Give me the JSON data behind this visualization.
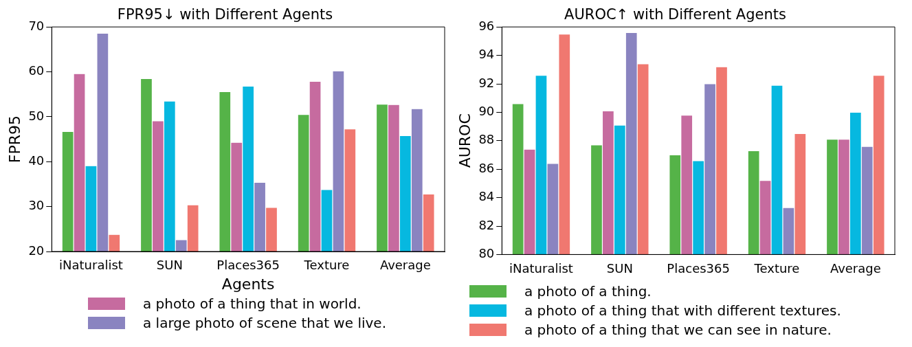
{
  "chart_data": [
    {
      "type": "bar",
      "title": "FPR95↓ with Different Agents",
      "xlabel": "Agents",
      "ylabel": "FPR95",
      "categories": [
        "iNaturalist",
        "SUN",
        "Places365",
        "Texture",
        "Average"
      ],
      "ylim": [
        20,
        70
      ],
      "yticks": [
        20,
        30,
        40,
        50,
        60,
        70
      ],
      "grid": false,
      "legend": "bottom",
      "series": [
        {
          "color": "#55b348",
          "values": [
            46.7,
            58.5,
            55.6,
            50.5,
            52.8
          ]
        },
        {
          "name": "a photo of a thing that in world.",
          "color": "#c66b9f",
          "values": [
            59.6,
            49.1,
            44.3,
            57.9,
            52.7
          ]
        },
        {
          "color": "#06b8e0",
          "values": [
            39.1,
            53.5,
            56.8,
            33.8,
            45.8
          ]
        },
        {
          "name": "a large photo of scene that we live.",
          "color": "#8a84c0",
          "values": [
            68.6,
            22.6,
            35.4,
            60.2,
            51.8
          ]
        },
        {
          "color": "#f07870",
          "values": [
            23.8,
            30.4,
            29.8,
            47.3,
            32.8
          ]
        }
      ]
    },
    {
      "type": "bar",
      "title": "AUROC↑ with Different Agents",
      "ylabel": "AUROC",
      "categories": [
        "iNaturalist",
        "SUN",
        "Places365",
        "Texture",
        "Average"
      ],
      "ylim": [
        80,
        96
      ],
      "yticks": [
        80,
        82,
        84,
        86,
        88,
        90,
        92,
        94,
        96
      ],
      "grid": false,
      "legend": "bottom",
      "series": [
        {
          "name": "a photo of a thing.",
          "color": "#55b348",
          "values": [
            90.6,
            87.7,
            87.0,
            87.3,
            88.1
          ]
        },
        {
          "color": "#c66b9f",
          "values": [
            87.4,
            90.1,
            89.8,
            85.2,
            88.1
          ]
        },
        {
          "name": "a photo of a thing that with different textures.",
          "color": "#06b8e0",
          "values": [
            92.6,
            89.1,
            86.6,
            91.9,
            90.0
          ]
        },
        {
          "color": "#8a84c0",
          "values": [
            86.4,
            95.6,
            92.0,
            83.3,
            87.6
          ]
        },
        {
          "name": "a photo of a thing that we can see in nature.",
          "color": "#f07870",
          "values": [
            95.5,
            93.4,
            93.2,
            88.5,
            92.6
          ]
        }
      ]
    }
  ]
}
